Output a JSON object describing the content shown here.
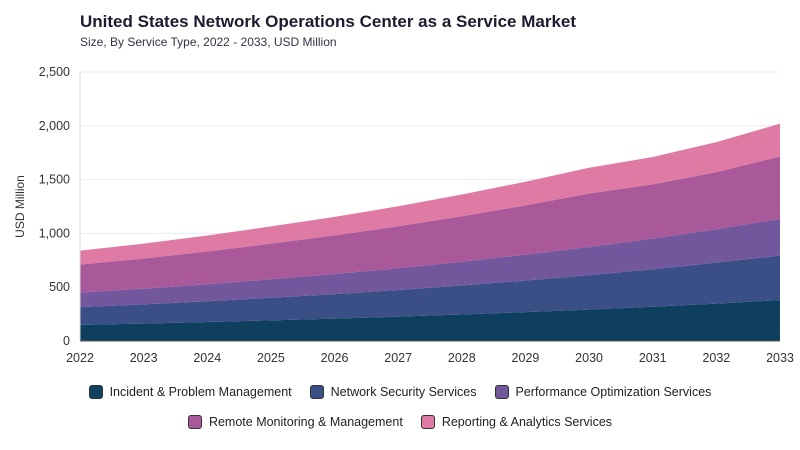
{
  "title": "United States Network Operations Center as a Service Market",
  "subtitle": "Size, By Service Type, 2022 - 2033, USD Million",
  "chart_data": {
    "type": "area",
    "stacked": true,
    "ylabel": "USD Million",
    "xlabel": "",
    "ylim": [
      0,
      2500
    ],
    "yticks": [
      0,
      500,
      1000,
      1500,
      2000,
      2500
    ],
    "ytick_labels": [
      "0",
      "500",
      "1,000",
      "1,500",
      "2,000",
      "2,500"
    ],
    "categories": [
      "2022",
      "2023",
      "2024",
      "2025",
      "2026",
      "2027",
      "2028",
      "2029",
      "2030",
      "2031",
      "2032",
      "2033"
    ],
    "grid": true,
    "legend_position": "bottom",
    "series": [
      {
        "name": "Incident & Problem Management",
        "color": "#0e3f5f",
        "values": [
          150,
          162,
          176,
          192,
          208,
          226,
          246,
          268,
          292,
          318,
          347,
          380
        ]
      },
      {
        "name": "Network Security Services",
        "color": "#3a4f85",
        "values": [
          165,
          178,
          193,
          210,
          228,
          248,
          270,
          294,
          320,
          349,
          381,
          415
        ]
      },
      {
        "name": "Performance Optimization Services",
        "color": "#73579c",
        "values": [
          135,
          146,
          158,
          172,
          187,
          203,
          221,
          241,
          262,
          286,
          312,
          340
        ]
      },
      {
        "name": "Remote Monitoring & Management",
        "color": "#a9599a",
        "values": [
          260,
          281,
          305,
          331,
          359,
          389,
          422,
          458,
          497,
          503,
          530,
          580
        ]
      },
      {
        "name": "Reporting & Analytics Services",
        "color": "#de7aa4",
        "values": [
          130,
          138,
          148,
          160,
          172,
          186,
          202,
          219,
          239,
          254,
          278,
          305
        ]
      }
    ]
  }
}
